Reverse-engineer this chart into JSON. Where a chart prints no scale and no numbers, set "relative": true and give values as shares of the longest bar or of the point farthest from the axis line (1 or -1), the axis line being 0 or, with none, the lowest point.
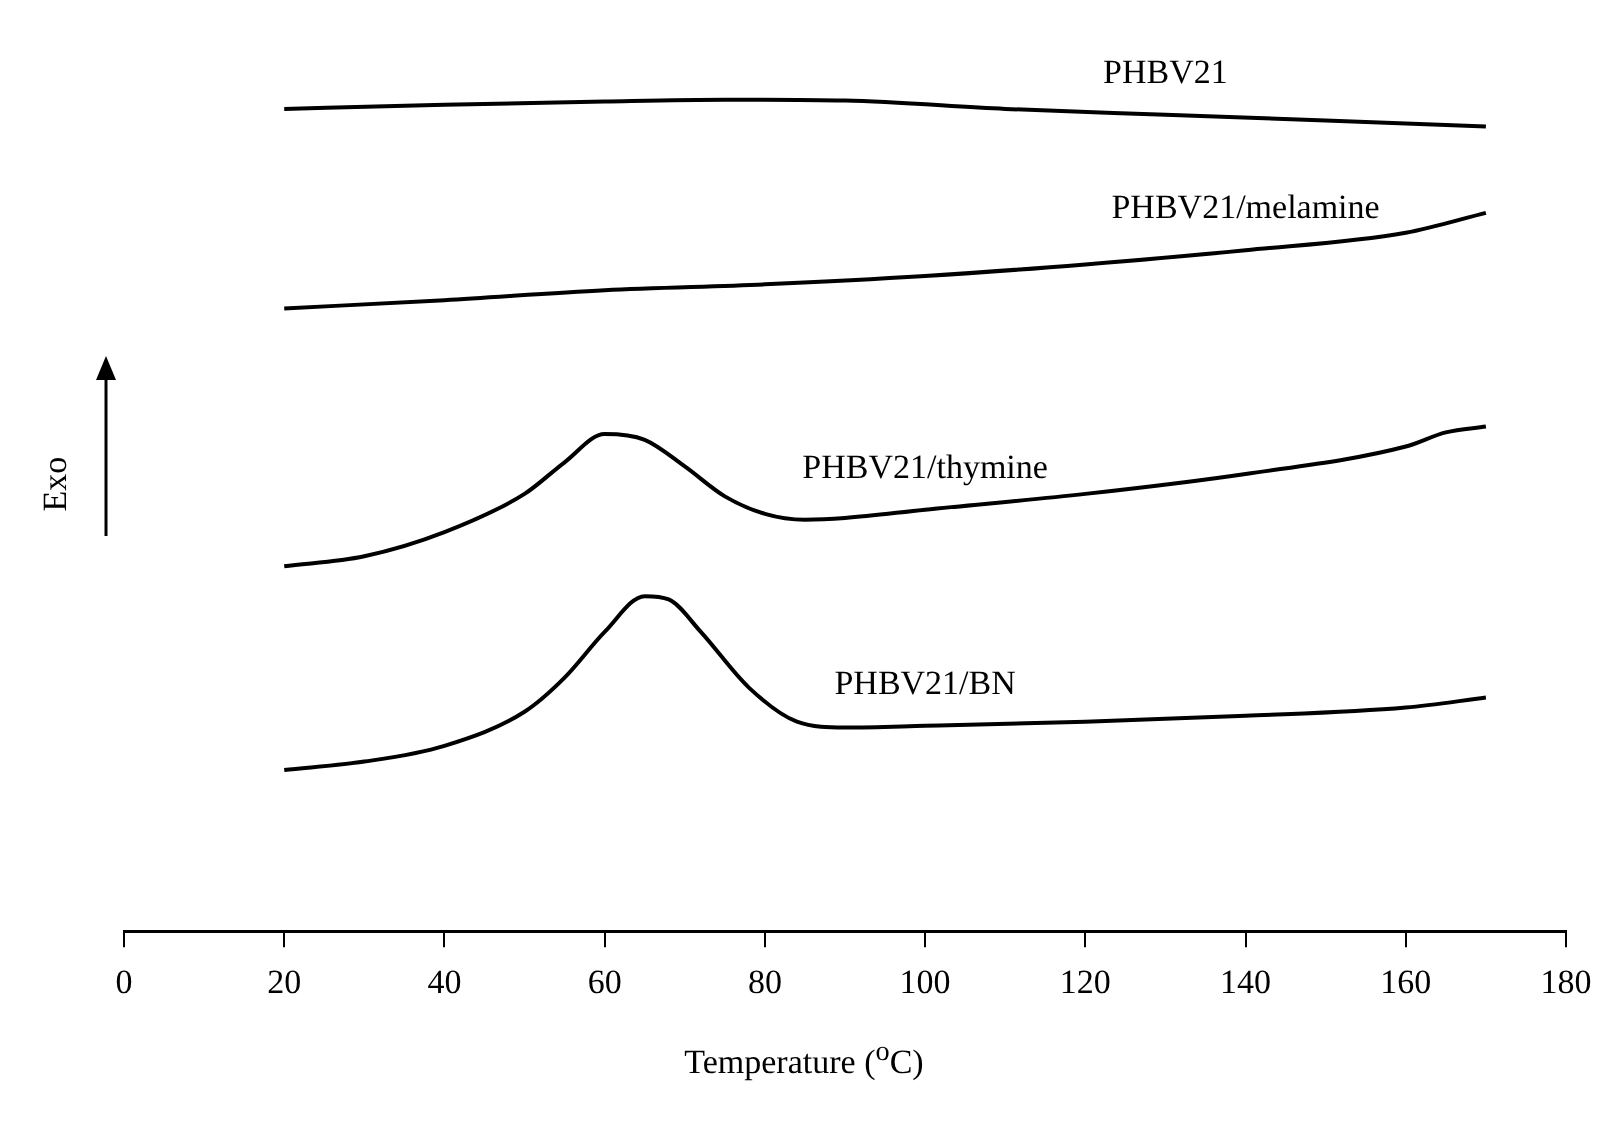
{
  "chart_data": {
    "type": "line",
    "relative": true,
    "xlabel": "Temperature ($^{o}$C)",
    "ylabel": "Exo",
    "xlim": [
      0,
      180
    ],
    "xticks": [
      0,
      20,
      40,
      60,
      80,
      100,
      120,
      140,
      160,
      180
    ],
    "grid": false,
    "legend": false,
    "marker": "none",
    "line_style": "solid",
    "series": [
      {
        "name": "PHBV21",
        "color": "#000000",
        "x": [
          20,
          40,
          60,
          75,
          90,
          110,
          130,
          150,
          170
        ],
        "values": [
          0.989,
          0.994,
          0.998,
          1,
          0.999,
          0.989,
          0.982,
          0.975,
          0.968
        ]
      },
      {
        "name": "PHBV21/melamine",
        "color": "#000000",
        "x": [
          20,
          40,
          60,
          80,
          100,
          120,
          140,
          160,
          170
        ],
        "values": [
          0.749,
          0.759,
          0.771,
          0.778,
          0.788,
          0.802,
          0.819,
          0.84,
          0.864
        ]
      },
      {
        "name": "PHBV21/thymine",
        "color": "#000000",
        "x": [
          20,
          30,
          40,
          50,
          55,
          60,
          65,
          70,
          75,
          80,
          85,
          90,
          100,
          120,
          140,
          160,
          165,
          170
        ],
        "values": [
          0.439,
          0.451,
          0.48,
          0.526,
          0.564,
          0.598,
          0.591,
          0.559,
          0.523,
          0.502,
          0.495,
          0.497,
          0.507,
          0.526,
          0.55,
          0.583,
          0.6,
          0.607
        ]
      },
      {
        "name": "PHBV21/BN",
        "color": "#000000",
        "x": [
          20,
          30,
          40,
          50,
          55,
          60,
          65,
          68,
          72,
          78,
          84,
          90,
          100,
          120,
          140,
          160,
          170
        ],
        "values": [
          0.194,
          0.204,
          0.223,
          0.264,
          0.305,
          0.36,
          0.403,
          0.399,
          0.36,
          0.293,
          0.252,
          0.245,
          0.247,
          0.252,
          0.259,
          0.269,
          0.281
        ]
      }
    ]
  }
}
